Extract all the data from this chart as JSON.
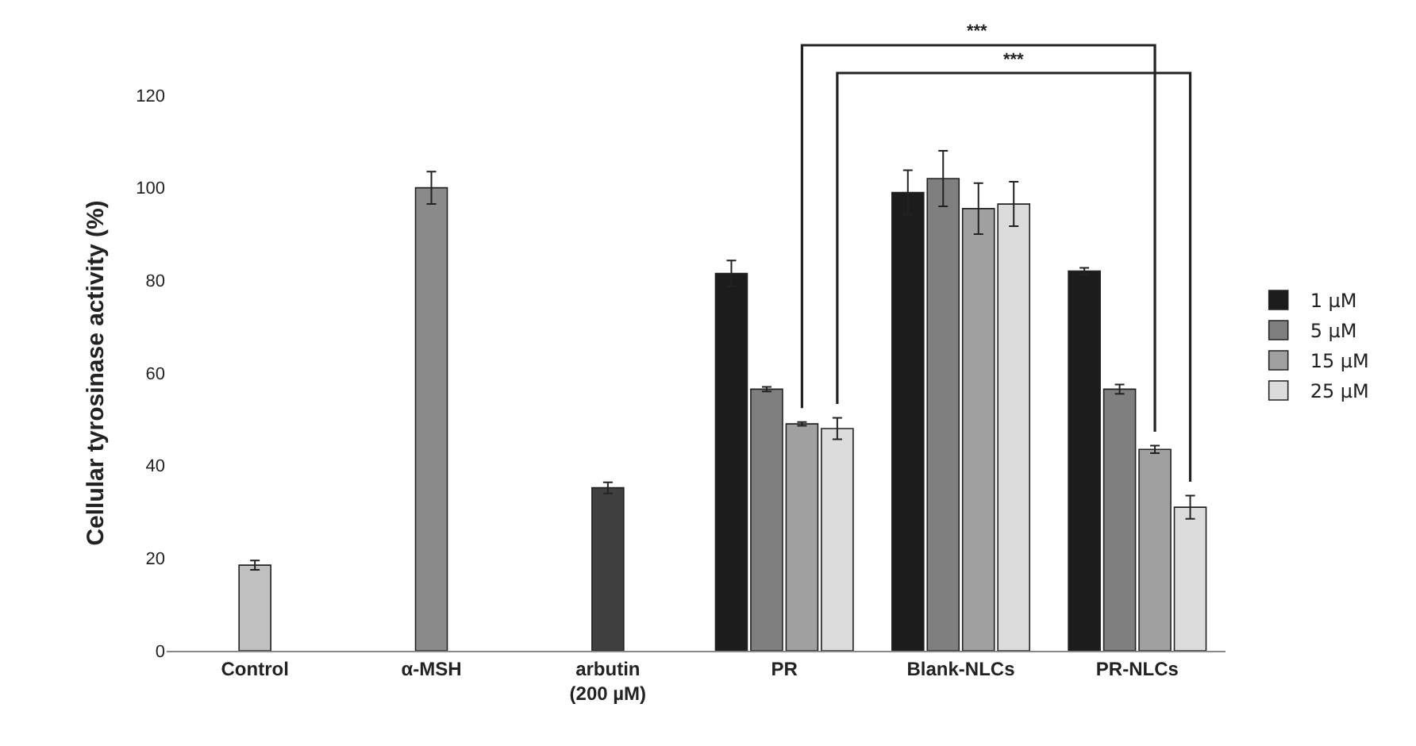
{
  "chart_data": {
    "type": "bar",
    "ylabel": "Cellular tyrosinase activity (%)",
    "categories": [
      "Control",
      "α-MSH",
      "arbutin\n(200 µM)",
      "PR",
      "Blank-NLCs",
      "PR-NLCs"
    ],
    "series": [
      {
        "colors": [
          "#c0c0c0",
          "#8a8a8a",
          "#404040",
          null,
          null,
          null
        ],
        "values": [
          18.5,
          100,
          35.2,
          null,
          null,
          null
        ],
        "errors": [
          1,
          3.5,
          1.2,
          null,
          null,
          null
        ]
      },
      {
        "name": "1 µM",
        "color": "#1c1c1c",
        "values": [
          null,
          null,
          null,
          81.5,
          99,
          82
        ],
        "errors": [
          null,
          null,
          null,
          2.8,
          4.8,
          0.7
        ]
      },
      {
        "name": "5 µM",
        "color": "#7f7f7f",
        "values": [
          null,
          null,
          null,
          56.5,
          102,
          56.5
        ],
        "errors": [
          null,
          null,
          null,
          0.5,
          6,
          1
        ]
      },
      {
        "name": "15 µM",
        "color": "#a0a0a0",
        "values": [
          null,
          null,
          null,
          49,
          95.5,
          43.5
        ],
        "errors": [
          null,
          null,
          null,
          0.4,
          5.5,
          0.8
        ]
      },
      {
        "name": "25 µM",
        "color": "#dcdcdc",
        "values": [
          null,
          null,
          null,
          48,
          96.5,
          31
        ],
        "errors": [
          null,
          null,
          null,
          2.3,
          4.8,
          2.5
        ]
      }
    ],
    "ylim": [
      0,
      120
    ],
    "yticks": [
      0,
      20,
      40,
      60,
      80,
      100,
      120
    ],
    "grid": false,
    "legend": "right",
    "annotations": [
      "***",
      "***"
    ]
  }
}
